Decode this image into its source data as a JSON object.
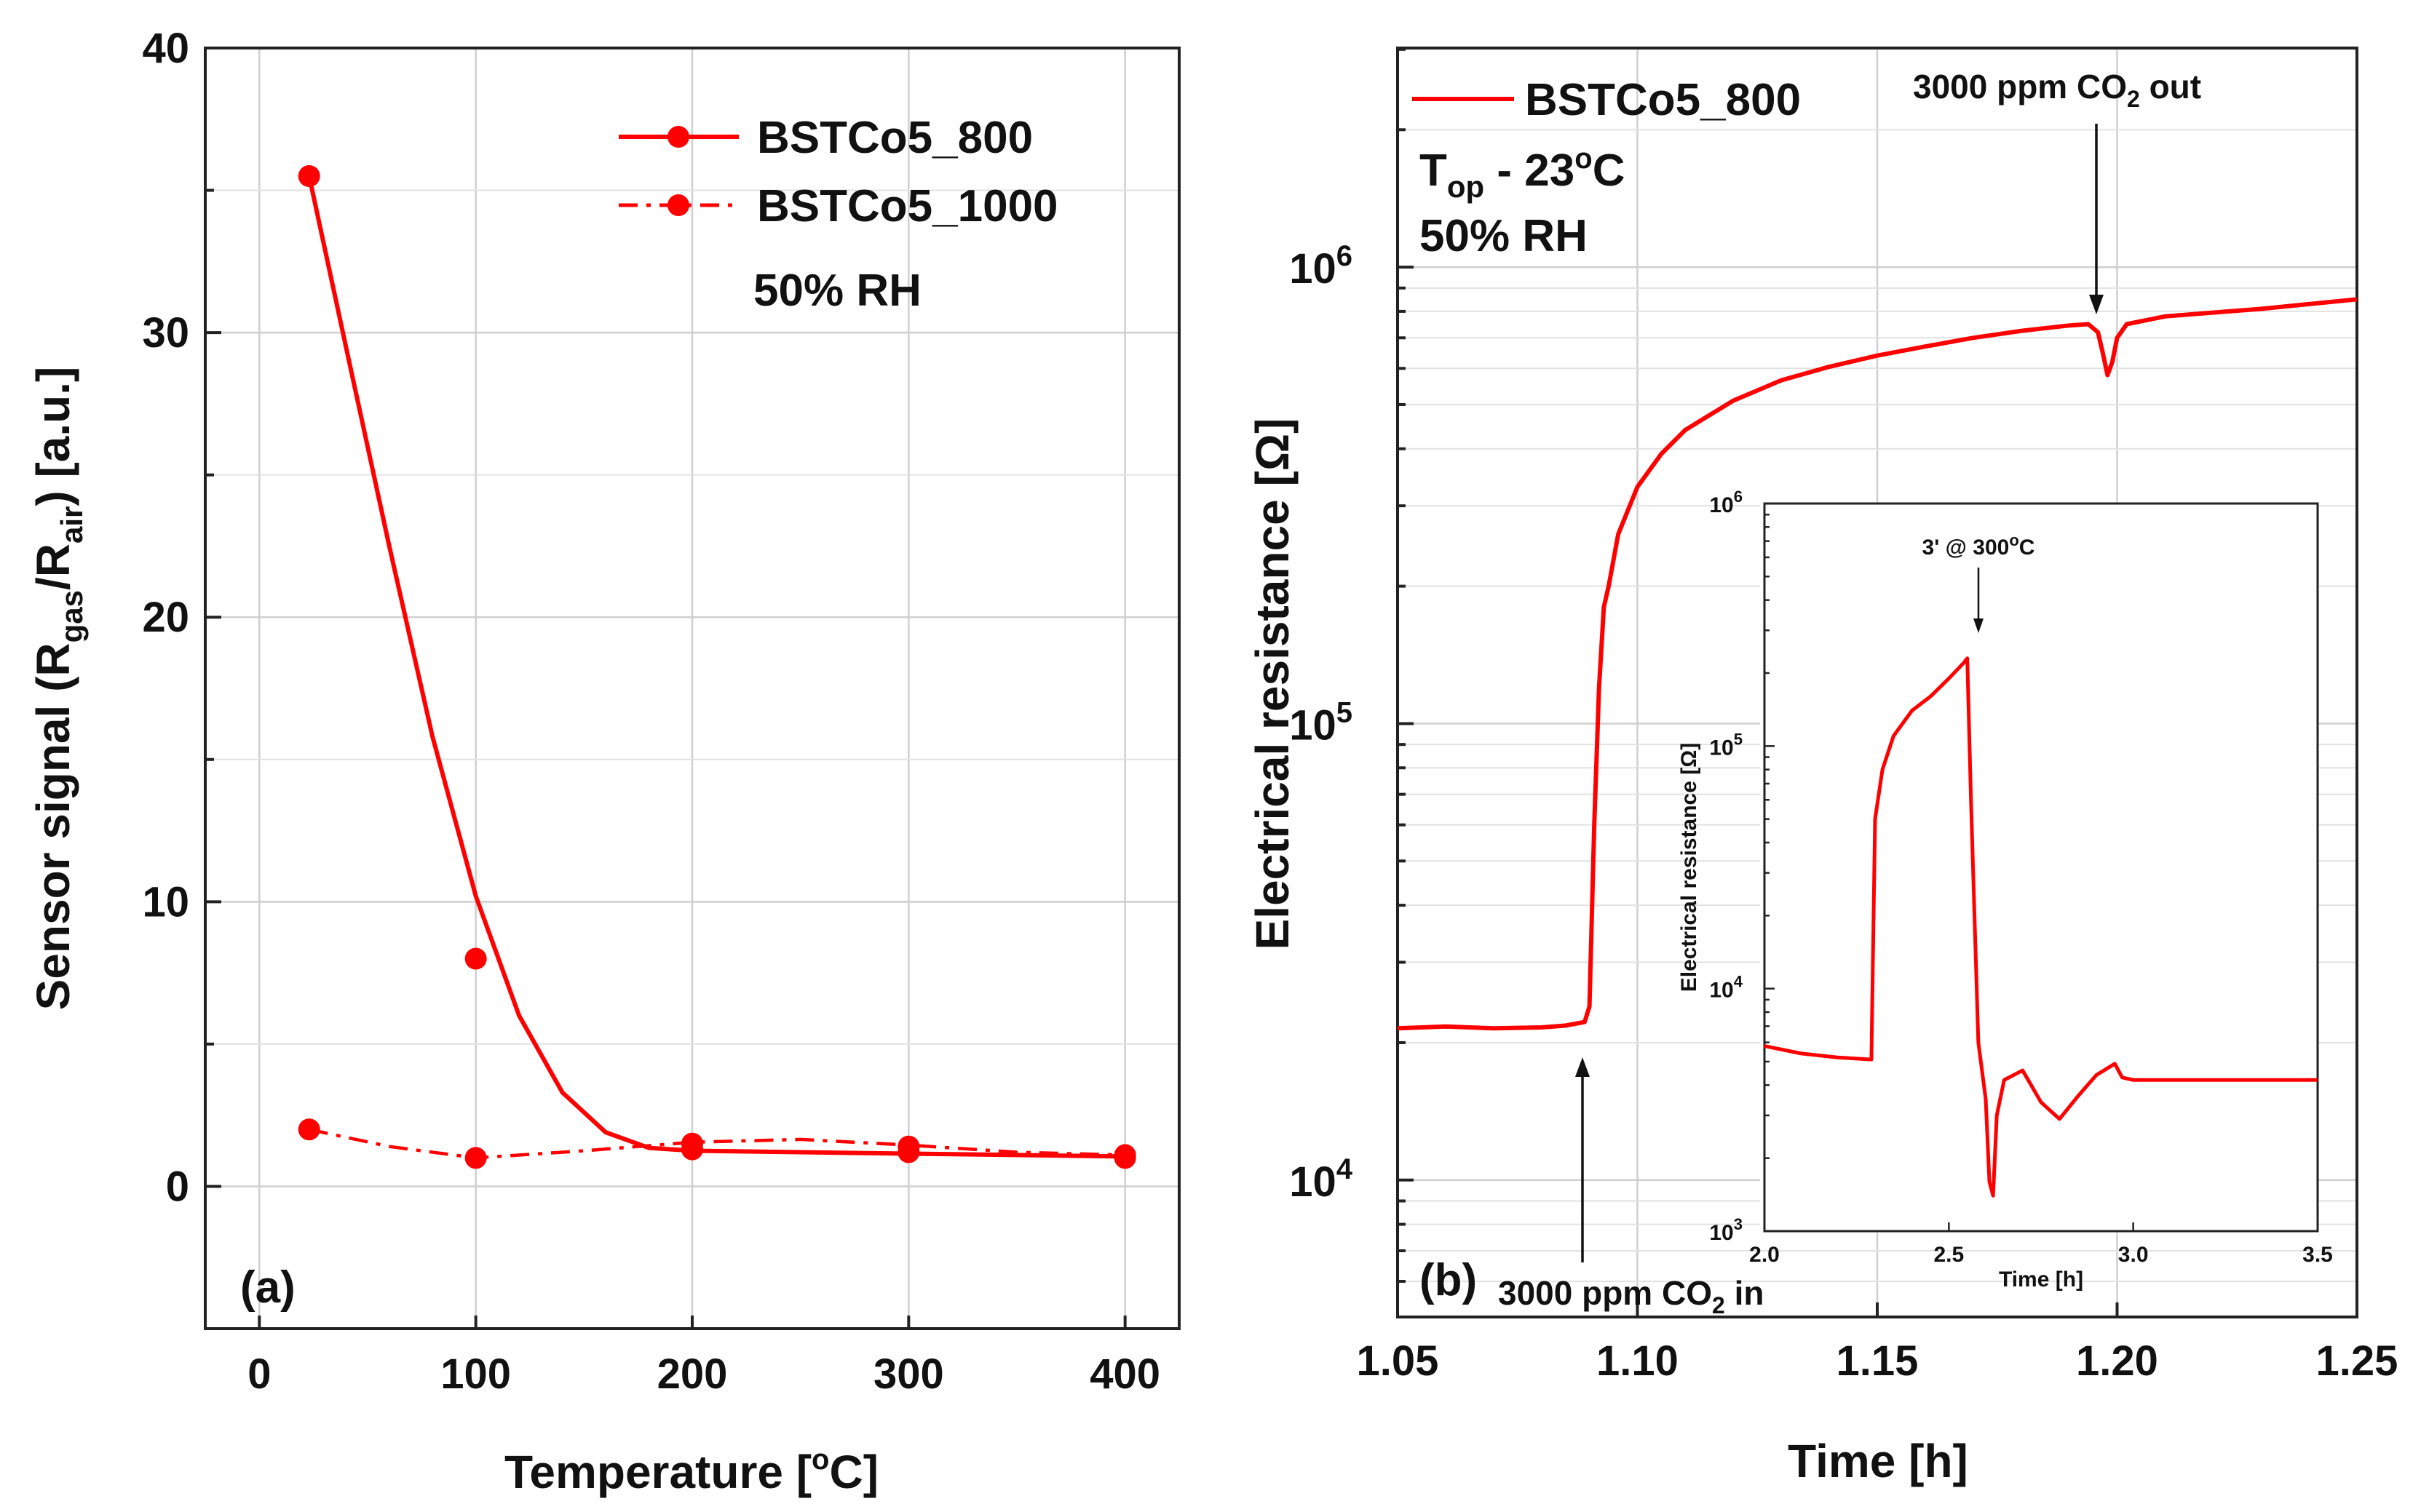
{
  "chart_data": [
    {
      "type": "line",
      "panel_label": "(a)",
      "xlabel_main": "Temperature [",
      "xlabel_sup": "o",
      "xlabel_end": "C]",
      "ylabel_main": "Sensor signal (R",
      "ylabel_sub1": "gas",
      "ylabel_mid": "/R",
      "ylabel_sub2": "air",
      "ylabel_end": ") [a.u.]",
      "xlim": [
        -25,
        425
      ],
      "ylim": [
        -5,
        40
      ],
      "xticks": [
        0,
        100,
        200,
        300,
        400
      ],
      "yticks": [
        0,
        10,
        20,
        30,
        40
      ],
      "annotation": "50% RH",
      "series": [
        {
          "name": "BSTCo5_800",
          "style": "solid",
          "color": "#ff0000",
          "markers": {
            "x": [
              23,
              100,
              200,
              300,
              400
            ],
            "y": [
              35.5,
              8.0,
              1.3,
              1.2,
              1.0
            ]
          },
          "curve": {
            "x": [
              23,
              40,
              60,
              80,
              100,
              120,
              140,
              160,
              180,
              200,
              250,
              300,
              350,
              400
            ],
            "y": [
              35.5,
              29.5,
              22.5,
              15.8,
              10.2,
              6.0,
              3.3,
              1.9,
              1.35,
              1.25,
              1.2,
              1.15,
              1.1,
              1.05
            ]
          }
        },
        {
          "name": "BSTCo5_1000",
          "style": "dashdot",
          "color": "#ff0000",
          "markers": {
            "x": [
              23,
              100,
              200,
              300,
              400
            ],
            "y": [
              2.0,
              1.0,
              1.5,
              1.4,
              1.1
            ]
          },
          "curve": {
            "x": [
              23,
              60,
              100,
              150,
              200,
              250,
              300,
              350,
              400
            ],
            "y": [
              2.0,
              1.4,
              1.0,
              1.25,
              1.55,
              1.65,
              1.45,
              1.2,
              1.1
            ]
          }
        }
      ]
    },
    {
      "type": "line",
      "panel_label": "(b)",
      "xlabel": "Time [h]",
      "ylabel_main": "Electrical resistance [Ω]",
      "xlim": [
        1.05,
        1.25
      ],
      "ylim_log10": [
        3.7,
        6.48
      ],
      "yscale": "log",
      "xticks": [
        "1.05",
        "1.10",
        "1.15",
        "1.20",
        "1.25"
      ],
      "xtick_values": [
        1.05,
        1.1,
        1.15,
        1.2,
        1.25
      ],
      "ytick_labels": [
        {
          "base": "10",
          "exp": "4",
          "log": 4
        },
        {
          "base": "10",
          "exp": "5",
          "log": 5
        },
        {
          "base": "10",
          "exp": "6",
          "log": 6
        }
      ],
      "legend": "BSTCo5_800",
      "top_label_main": "T",
      "top_label_sub": "op",
      "top_label_mid": " - 23",
      "top_label_sup": "o",
      "top_label_end": "C",
      "rh_label": "50% RH",
      "ann_out_pre": "3000 ppm CO",
      "ann_out_sub": "2",
      "ann_out_post": " out",
      "ann_in_pre": "3000 ppm CO",
      "ann_in_sub": "2",
      "ann_in_post": " in",
      "series": {
        "name": "BSTCo5_800",
        "color": "#ff0000",
        "x": [
          1.05,
          1.06,
          1.07,
          1.08,
          1.085,
          1.089,
          1.09,
          1.091,
          1.092,
          1.093,
          1.094,
          1.096,
          1.1,
          1.105,
          1.11,
          1.12,
          1.13,
          1.14,
          1.15,
          1.16,
          1.17,
          1.18,
          1.19,
          1.194,
          1.196,
          1.197,
          1.198,
          1.199,
          1.2,
          1.202,
          1.21,
          1.22,
          1.23,
          1.24,
          1.25
        ],
        "y": [
          21500,
          21700,
          21500,
          21600,
          21800,
          22200,
          24000,
          60000,
          120000,
          180000,
          200000,
          260000,
          330000,
          390000,
          440000,
          510000,
          565000,
          605000,
          640000,
          670000,
          700000,
          725000,
          745000,
          750000,
          720000,
          650000,
          580000,
          620000,
          700000,
          750000,
          780000,
          795000,
          810000,
          830000,
          850000
        ]
      },
      "inset": {
        "xlabel": "Time [h]",
        "ylabel": "Electrical resistance [Ω]",
        "xlim": [
          2.0,
          3.5
        ],
        "ylim_log10": [
          3,
          6
        ],
        "xticks": [
          "2.0",
          "2.5",
          "3.0",
          "3.5"
        ],
        "xtick_values": [
          2.0,
          2.5,
          3.0,
          3.5
        ],
        "ytick_labels": [
          {
            "base": "10",
            "exp": "3",
            "log": 3
          },
          {
            "base": "10",
            "exp": "4",
            "log": 4
          },
          {
            "base": "10",
            "exp": "5",
            "log": 5
          },
          {
            "base": "10",
            "exp": "6",
            "log": 6
          }
        ],
        "annotation_pre": "3' @ 300",
        "annotation_sup": "o",
        "annotation_post": "C",
        "x": [
          2.0,
          2.1,
          2.2,
          2.29,
          2.3,
          2.32,
          2.35,
          2.4,
          2.45,
          2.5,
          2.54,
          2.55,
          2.56,
          2.58,
          2.6,
          2.61,
          2.62,
          2.63,
          2.65,
          2.7,
          2.75,
          2.8,
          2.85,
          2.9,
          2.95,
          2.97,
          3.0,
          3.1,
          3.2,
          3.3,
          3.4,
          3.5
        ],
        "y": [
          5800,
          5400,
          5200,
          5100,
          50000,
          80000,
          110000,
          140000,
          160000,
          190000,
          220000,
          230000,
          60000,
          6000,
          3500,
          1600,
          1400,
          3000,
          4200,
          4600,
          3400,
          2900,
          3600,
          4400,
          4900,
          4300,
          4200,
          4200,
          4200,
          4200,
          4200,
          4200
        ]
      }
    }
  ]
}
